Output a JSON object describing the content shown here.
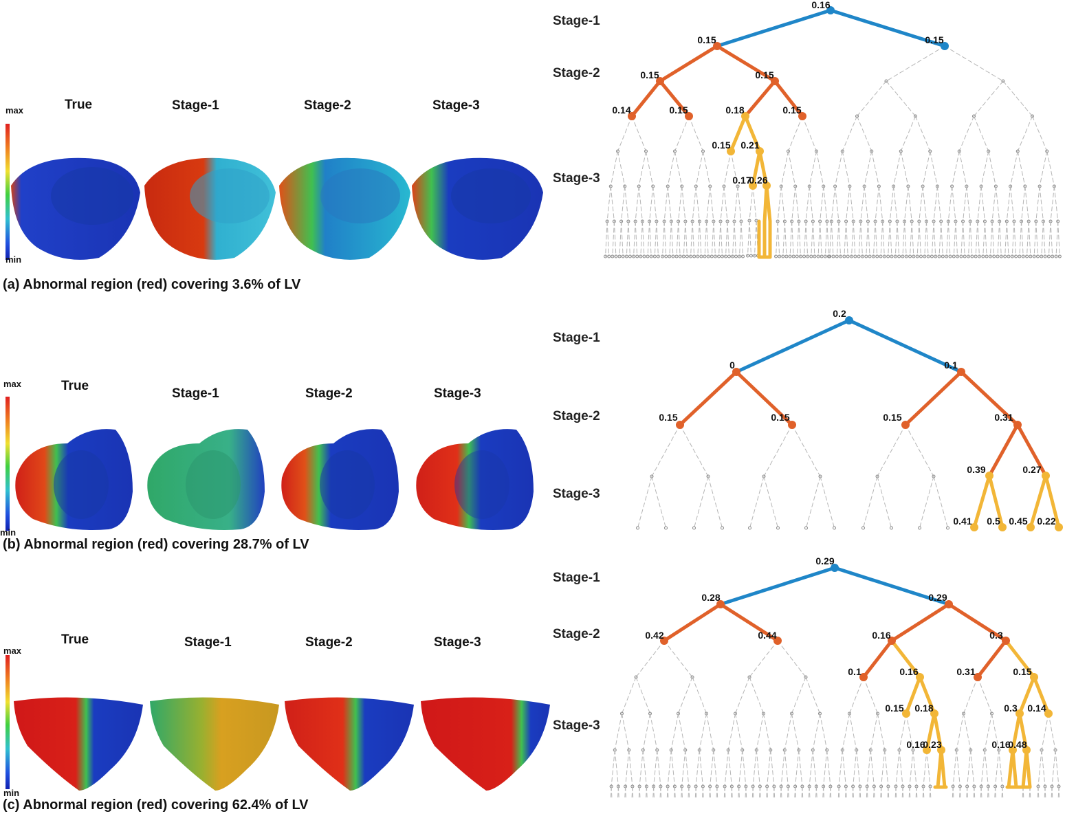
{
  "colors": {
    "stage1": "#1f86c8",
    "stage2": "#e0612a",
    "stage3": "#f2b637",
    "inactive": "#b5b5b5"
  },
  "panels": [
    {
      "headers": [
        "True",
        "Stage-1",
        "Stage-2",
        "Stage-3"
      ],
      "colorbar": {
        "max": "max",
        "min": "min"
      },
      "caption": "(a) Abnormal region (red) covering 3.6% of LV",
      "tree": {
        "stage_labels": [
          "Stage-1",
          "Stage-2",
          "Stage-3"
        ],
        "labels": {
          "root": "0.16",
          "s1L": "0.15",
          "s1R": "0.15",
          "s2LL": "0.15",
          "s2LR": "0.15",
          "s3_1": "0.14",
          "s3_2": "0.15",
          "s3_3": "0.18",
          "s3_4": "0.15",
          "s4_a": "0.15",
          "s4_b": "0.21",
          "s5_a": "0.17",
          "s5_b": "0.26"
        }
      }
    },
    {
      "headers": [
        "True",
        "Stage-1",
        "Stage-2",
        "Stage-3"
      ],
      "colorbar": {
        "max": "max",
        "min": "min"
      },
      "caption": "(b) Abnormal region (red) covering 28.7% of LV",
      "tree": {
        "stage_labels": [
          "Stage-1",
          "Stage-2",
          "Stage-3"
        ],
        "labels": {
          "root": "0.2",
          "s1L": "0",
          "s1R": "0.1",
          "s2_1": "0.15",
          "s2_2": "0.15",
          "s2_3": "0.15",
          "s2_4": "0.31",
          "s3_a": "0.39",
          "s3_b": "0.27",
          "s4_1": "0.41",
          "s4_2": "0.5",
          "s4_3": "0.45",
          "s4_4": "0.22"
        }
      }
    },
    {
      "headers": [
        "True",
        "Stage-1",
        "Stage-2",
        "Stage-3"
      ],
      "colorbar": {
        "max": "max",
        "min": "min"
      },
      "caption": "(c) Abnormal region (red) covering 62.4% of LV",
      "tree": {
        "stage_labels": [
          "Stage-1",
          "Stage-2",
          "Stage-3"
        ],
        "labels": {
          "root": "0.29",
          "s1L": "0.28",
          "s1R": "0.29",
          "s2_1": "0.42",
          "s2_2": "0.44",
          "s2_3": "0.16",
          "s2_4": "0.3",
          "s3_1": "0.1",
          "s3_2": "0.16",
          "s3_3": "0.31",
          "s3_4": "0.15",
          "s4_1": "0.15",
          "s4_2": "0.18",
          "s4_3": "0.3",
          "s4_4": "0.14",
          "s5_1": "0.16",
          "s5_2": "0.23",
          "s5_3": "0.16",
          "s5_4": "0.48"
        }
      }
    }
  ]
}
